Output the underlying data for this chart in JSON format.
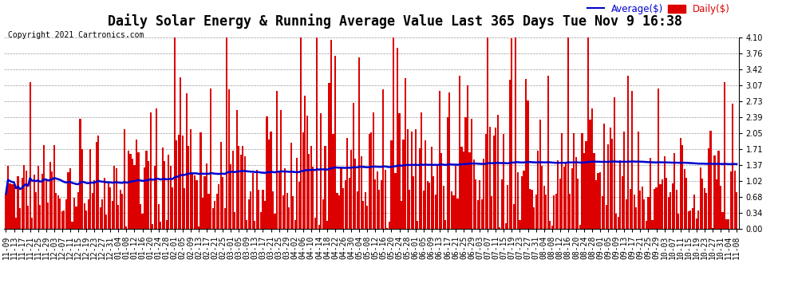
{
  "title": "Daily Solar Energy & Running Average Value Last 365 Days Tue Nov 9 16:38",
  "copyright": "Copyright 2021 Cartronics.com",
  "legend_avg": "Average($)",
  "legend_daily": "Daily($)",
  "bar_color": "#dd0000",
  "avg_line_color": "#0000cc",
  "background_color": "#ffffff",
  "plot_bg_color": "#ffffff",
  "grid_color": "#999999",
  "ylim": [
    0.0,
    4.1
  ],
  "yticks": [
    0.0,
    0.34,
    0.68,
    1.02,
    1.37,
    1.71,
    2.05,
    2.39,
    2.73,
    3.07,
    3.42,
    3.76,
    4.1
  ],
  "title_fontsize": 12,
  "tick_fontsize": 7,
  "copyright_fontsize": 7,
  "legend_fontsize": 8.5
}
